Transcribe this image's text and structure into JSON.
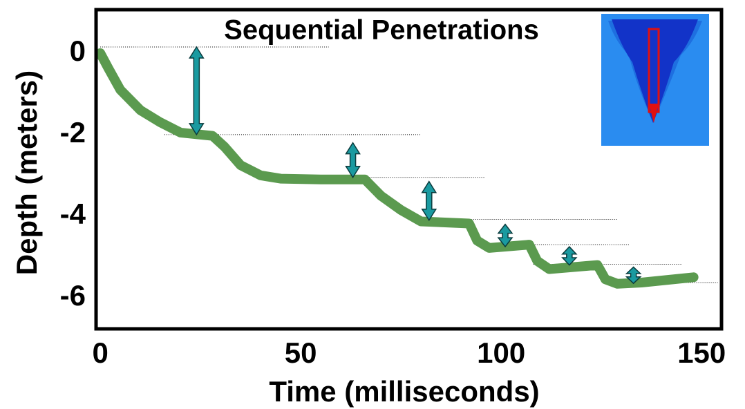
{
  "chart_data": {
    "type": "line",
    "title": "Sequential Penetrations",
    "x_label": "Time (milliseconds)",
    "y_label": "Depth (meters)",
    "xlim": [
      -1.4,
      155.3
    ],
    "ylim": [
      -6.8,
      1.1
    ],
    "xticks": [
      0,
      50,
      100,
      150
    ],
    "yticks": [
      0,
      -2,
      -4,
      -6
    ],
    "series": [
      {
        "color": "#5b9a4f",
        "x": [
          0,
          2,
          5,
          10,
          15,
          20,
          28,
          31,
          35,
          40,
          45,
          55,
          66,
          70,
          75,
          80,
          92,
          94,
          97,
          107,
          109,
          112,
          124,
          126,
          129,
          135,
          148
        ],
        "values": [
          0,
          -0.37,
          -0.9,
          -1.4,
          -1.7,
          -1.95,
          -2.03,
          -2.3,
          -2.75,
          -3.0,
          -3.08,
          -3.1,
          -3.1,
          -3.5,
          -3.85,
          -4.13,
          -4.18,
          -4.6,
          -4.78,
          -4.7,
          -5.1,
          -5.3,
          -5.2,
          -5.55,
          -5.66,
          -5.63,
          -5.5
        ]
      }
    ],
    "reference_lines": [
      {
        "y": 0.15,
        "x": [
          0,
          57
        ]
      },
      {
        "y": -2.0,
        "x": [
          16,
          80
        ]
      },
      {
        "y": -3.05,
        "x": [
          48,
          96
        ]
      },
      {
        "y": -4.08,
        "x": [
          78,
          129
        ]
      },
      {
        "y": -4.7,
        "x": [
          97,
          132
        ]
      },
      {
        "y": -5.18,
        "x": [
          108,
          145
        ]
      },
      {
        "y": -5.63,
        "x": [
          128,
          154
        ]
      }
    ],
    "arrows": [
      {
        "x": 24,
        "from": 0.15,
        "to": -2.0
      },
      {
        "x": 63,
        "from": -2.2,
        "to": -3.05
      },
      {
        "x": 82,
        "from": -3.15,
        "to": -4.1
      },
      {
        "x": 101,
        "from": -4.2,
        "to": -4.75
      },
      {
        "x": 117,
        "from": -4.75,
        "to": -5.2
      },
      {
        "x": 133,
        "from": -5.25,
        "to": -5.65
      }
    ]
  }
}
